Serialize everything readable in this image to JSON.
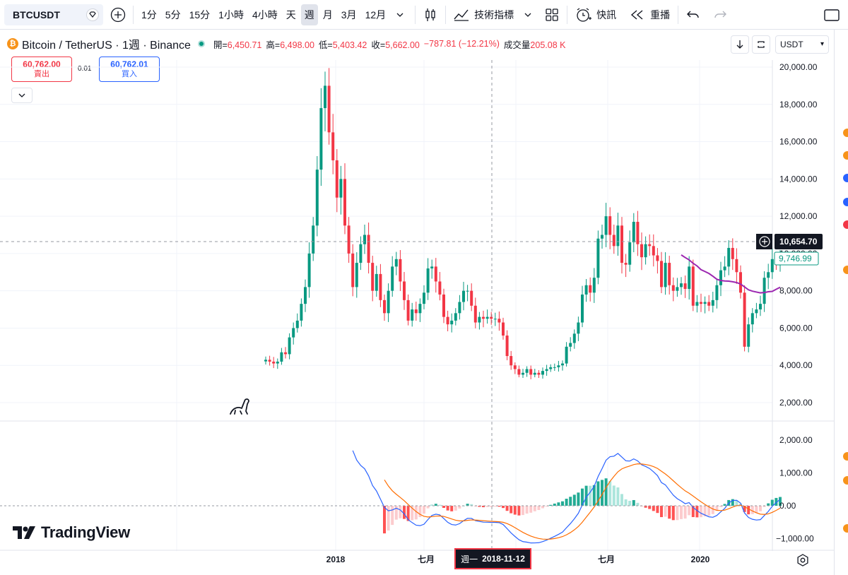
{
  "toolbar": {
    "symbol": "BTCUSDT",
    "intervals": [
      "1分",
      "5分",
      "15分",
      "1小時",
      "4小時",
      "天",
      "週",
      "月",
      "3月",
      "12月"
    ],
    "active_interval": "週",
    "indicators_label": "技術指標",
    "alert_label": "快訊",
    "replay_label": "重播"
  },
  "legend": {
    "title": "Bitcoin / TetherUS · 1週 · Binance",
    "open_label": "開=",
    "open": "6,450.71",
    "high_label": "高=",
    "high": "6,498.00",
    "low_label": "低=",
    "low": "5,403.42",
    "close_label": "收=",
    "close": "5,662.00",
    "change": "−787.81 (−12.21%)",
    "volume_label": "成交量",
    "volume": "205.08 K"
  },
  "trade": {
    "sell_price": "60,762.00",
    "sell_label": "賣出",
    "spread": "0.01",
    "buy_price": "60,762.01",
    "buy_label": "買入"
  },
  "currency": "USDT",
  "price_axis": {
    "ticks": [
      "20,000.00",
      "18,000.00",
      "16,000.00",
      "14,000.00",
      "12,000.00",
      "10,000.00",
      "8,000.00",
      "6,000.00",
      "4,000.00",
      "2,000.00"
    ],
    "crosshair_price": "10,654.70",
    "last_price": "9,746.99"
  },
  "macd_axis": {
    "ticks": [
      "2,000.00",
      "1,000.00",
      "0.00",
      "−1,000.00"
    ]
  },
  "time_axis": {
    "labels": [
      "2018",
      "七月",
      "七月",
      "2020"
    ],
    "crosshair_dow": "週一",
    "crosshair_date": "2018-11-12"
  },
  "brand": "TradingView",
  "colors": {
    "up": "#089981",
    "down": "#f23645",
    "macd_line": "#2962ff",
    "signal_line": "#ff6d00",
    "ma_line": "#9c27b0"
  },
  "chart_data": {
    "type": "candlestick",
    "symbol": "BTCUSDT",
    "interval": "1W",
    "y_range": [
      1000,
      20000
    ],
    "candles_close_approx": [
      4300,
      4200,
      4100,
      4200,
      4700,
      4600,
      5500,
      6000,
      6400,
      7300,
      8200,
      10000,
      11500,
      14500,
      17800,
      19000,
      16500,
      15000,
      13000,
      14000,
      11500,
      10000,
      8200,
      9500,
      10500,
      11000,
      9500,
      8000,
      8900,
      7500,
      6800,
      8000,
      9300,
      9700,
      8500,
      7500,
      6400,
      7000,
      6800,
      7300,
      7900,
      9200,
      9300,
      8500,
      7800,
      6600,
      6200,
      6400,
      6800,
      7400,
      8000,
      8000,
      7200,
      6300,
      6600,
      6500,
      6600,
      6500,
      6500,
      6300,
      5600,
      4500,
      4000,
      3800,
      3500,
      3600,
      3800,
      3500,
      3600,
      3500,
      3700,
      3800,
      3900,
      3900,
      4000,
      4100,
      5000,
      5200,
      5700,
      6300,
      7800,
      8300,
      7900,
      8700,
      10800,
      11000,
      12000,
      11000,
      10400,
      11500,
      9500,
      9400,
      10600,
      11700,
      10500,
      9800,
      10500,
      10400,
      9900,
      9600,
      8200,
      9500,
      8300,
      8000,
      8200,
      8400,
      8100,
      9300,
      7200,
      7400,
      7300,
      7400,
      7200,
      7500,
      8300,
      9100,
      9300,
      10300,
      9700,
      9000,
      7900,
      5000,
      6200,
      6800,
      7000,
      7300,
      8700,
      9000,
      9700,
      9600,
      9700
    ],
    "macd_range": [
      -1100,
      2400
    ]
  }
}
